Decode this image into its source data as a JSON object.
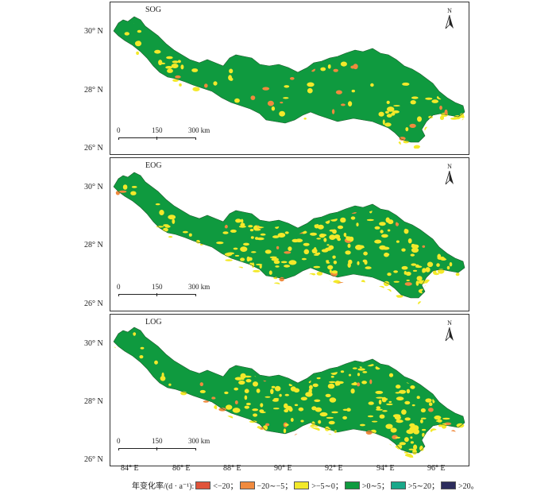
{
  "panels": [
    {
      "label": "SOG",
      "base": "#0f9a3f",
      "patch": "#f3e92a",
      "alt": "#f08a3e",
      "weights": [
        0.24,
        0.04
      ]
    },
    {
      "label": "EOG",
      "base": "#0f9a3f",
      "patch": "#f3e92a",
      "alt": "#f08a3e",
      "weights": [
        0.52,
        0.06
      ]
    },
    {
      "label": "LOG",
      "base": "#0f9a3f",
      "patch": "#f3e92a",
      "alt": "#f08a3e",
      "weights": [
        0.5,
        0.07
      ]
    }
  ],
  "north_label": "N",
  "scale": {
    "labels": [
      "0",
      "150",
      "300 km"
    ]
  },
  "lat_labels": [
    "30° N",
    "28° N",
    "26° N"
  ],
  "lon_labels": [
    "84° E",
    "86° E",
    "88° E",
    "90° E",
    "92° E",
    "94° E",
    "96° E"
  ],
  "legend": {
    "title": "年变化率/(d · a⁻¹):",
    "items": [
      {
        "label": "<−20；",
        "color": "#e0533a"
      },
      {
        "label": "−20∼−5；",
        "color": "#f08a3e"
      },
      {
        "label": ">−5∼0；",
        "color": "#f3e92a"
      },
      {
        "label": ">0∼5；",
        "color": "#0f9a3f"
      },
      {
        "label": ">5∼20；",
        "color": "#1aa88a"
      },
      {
        "label": ">20。",
        "color": "#2c2c5c"
      }
    ]
  }
}
